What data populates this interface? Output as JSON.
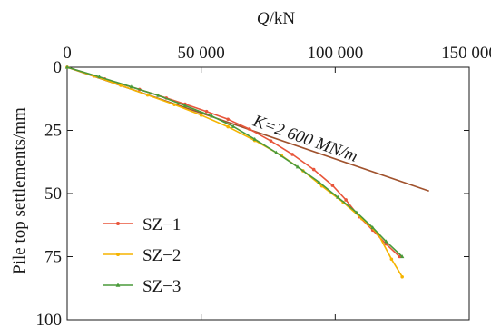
{
  "chart_data": {
    "type": "line",
    "title": "",
    "xlabel": "Q/kN",
    "xlabel_italic_part": "Q",
    "xlabel_unit_part": "/kN",
    "ylabel": "Pile top settlements/mm",
    "x_axis_position": "top",
    "y_inverted": true,
    "xlim": [
      0,
      150000
    ],
    "ylim": [
      0,
      100
    ],
    "x_ticks": [
      0,
      50000,
      100000,
      150000
    ],
    "x_tick_labels": [
      "0",
      "50 000",
      "100 000",
      "150 000"
    ],
    "y_ticks": [
      0,
      25,
      50,
      75,
      100
    ],
    "y_tick_labels": [
      "0",
      "25",
      "50",
      "75",
      "100"
    ],
    "grid": false,
    "legend_position": "bottom-left",
    "colors": {
      "SZ-1": "#e8553a",
      "SZ-2": "#f5b400",
      "SZ-3": "#4a9a3a",
      "stiffness_line": "#a0522d",
      "annotation": "#e0243c"
    },
    "series": [
      {
        "name": "SZ−1",
        "marker": "dot",
        "points": [
          [
            0,
            0
          ],
          [
            14000,
            4.6
          ],
          [
            27000,
            8.8
          ],
          [
            37000,
            12.2
          ],
          [
            44000,
            14.6
          ],
          [
            52000,
            17.5
          ],
          [
            60000,
            20.6
          ],
          [
            68000,
            24.5
          ],
          [
            76000,
            29.2
          ],
          [
            84000,
            34.5
          ],
          [
            92000,
            40.5
          ],
          [
            99000,
            46.8
          ],
          [
            104000,
            52.5
          ],
          [
            109000,
            59.2
          ],
          [
            114000,
            64.5
          ],
          [
            119000,
            70
          ],
          [
            124000,
            75
          ]
        ]
      },
      {
        "name": "SZ−2",
        "marker": "dot",
        "points": [
          [
            0,
            0
          ],
          [
            10000,
            3.5
          ],
          [
            20000,
            7.2
          ],
          [
            30000,
            11
          ],
          [
            40000,
            14.8
          ],
          [
            50000,
            19
          ],
          [
            60000,
            23.6
          ],
          [
            70000,
            29
          ],
          [
            80000,
            35
          ],
          [
            88000,
            41
          ],
          [
            95000,
            47
          ],
          [
            103000,
            53.5
          ],
          [
            110000,
            60
          ],
          [
            116000,
            66
          ],
          [
            121000,
            76
          ],
          [
            125000,
            83
          ]
        ]
      },
      {
        "name": "SZ−3",
        "marker": "triangle",
        "points": [
          [
            0,
            0
          ],
          [
            12000,
            3.8
          ],
          [
            24000,
            7.8
          ],
          [
            34000,
            11.2
          ],
          [
            44000,
            15.2
          ],
          [
            54000,
            19.4
          ],
          [
            62000,
            23.5
          ],
          [
            70000,
            28.5
          ],
          [
            78000,
            33.8
          ],
          [
            86000,
            39.5
          ],
          [
            94000,
            45.5
          ],
          [
            101000,
            51.5
          ],
          [
            108000,
            57.5
          ],
          [
            114000,
            63.5
          ],
          [
            119000,
            69
          ],
          [
            125000,
            75
          ]
        ]
      }
    ],
    "reference_line": {
      "points": [
        [
          0,
          0
        ],
        [
          135000,
          49
        ]
      ]
    },
    "annotation": {
      "text": "K=2 600 MN/m",
      "anchor": [
        69000,
        23
      ],
      "rotation": 19.5
    }
  }
}
